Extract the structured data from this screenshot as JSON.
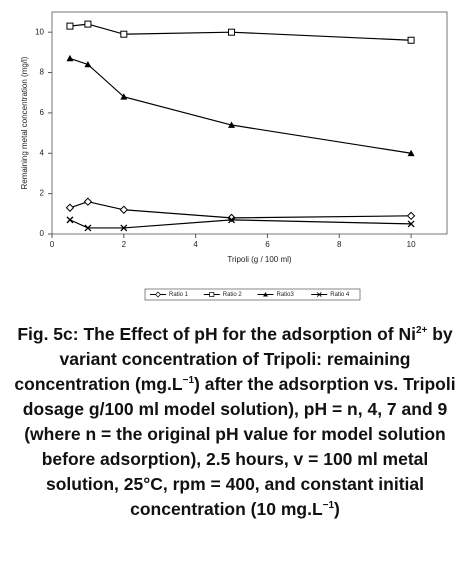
{
  "chart_data": {
    "type": "line",
    "xlabel": "Tripoli (g / 100 ml)",
    "ylabel": "Remaining metal concentration (mg/l)",
    "x": [
      0.5,
      1,
      2,
      5,
      10
    ],
    "xlim": [
      0,
      11
    ],
    "xticks": [
      0,
      2,
      4,
      6,
      8,
      10
    ],
    "ylim": [
      0,
      11
    ],
    "yticks": [
      0,
      2,
      4,
      6,
      8,
      10
    ],
    "legend": "bottom",
    "series": [
      {
        "name": "Ratio 1",
        "color": "#000000",
        "marker": "diamond",
        "values": [
          1.3,
          1.6,
          1.2,
          0.8,
          0.9
        ]
      },
      {
        "name": "Ratio 2",
        "color": "#000000",
        "marker": "square",
        "values": [
          10.3,
          10.4,
          9.9,
          10.0,
          9.6
        ]
      },
      {
        "name": "Ratio3",
        "color": "#000000",
        "marker": "triangle",
        "values": [
          8.7,
          8.4,
          6.8,
          5.4,
          4.0
        ]
      },
      {
        "name": "Ratio 4",
        "color": "#000000",
        "marker": "x",
        "values": [
          0.7,
          0.3,
          0.3,
          0.7,
          0.5
        ]
      }
    ]
  },
  "caption": [
    "Fig. 5c: The Effect of pH for the adsorption of Ni",
    "2+",
    " by variant concentration of Tripoli: remaining concentration (mg.L",
    "−1",
    ") after the adsorption vs. Tripoli dosage g/100 ml model solution), pH = n, 4, 7 and 9 (where n = the original pH value for model solution before adsorption), 2.5 hours, v = 100 ml metal solution, 25°C, rpm = 400, and constant initial concentration (10 mg.L",
    "−1",
    ")"
  ]
}
